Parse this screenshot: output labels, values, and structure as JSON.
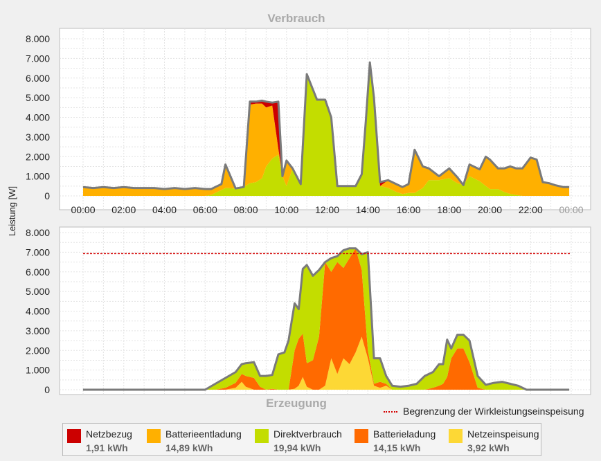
{
  "chart_data": [
    {
      "type": "area",
      "stacked": true,
      "title": "Verbrauch",
      "ylabel": "Leistung [W]",
      "ylim": [
        0,
        8000
      ],
      "y_ticks": [
        "0",
        "1.000",
        "2.000",
        "3.000",
        "4.000",
        "5.000",
        "6.000",
        "7.000",
        "8.000"
      ],
      "x_ticks": [
        "00:00",
        "02:00",
        "04:00",
        "06:00",
        "08:00",
        "10:00",
        "12:00",
        "14:00",
        "16:00",
        "18:00",
        "20:00",
        "22:00",
        "00:00"
      ],
      "grid": true,
      "x": [
        0,
        0.5,
        1,
        1.5,
        2,
        2.5,
        3,
        3.5,
        4,
        4.5,
        5,
        5.5,
        6,
        6.3,
        6.5,
        6.8,
        7,
        7.5,
        7.9,
        8.2,
        8.5,
        8.8,
        9,
        9.3,
        9.6,
        9.8,
        10,
        10.3,
        10.7,
        11,
        11.5,
        11.9,
        12.2,
        12.5,
        13,
        13.4,
        13.7,
        13.9,
        14.1,
        14.3,
        14.6,
        15,
        15.4,
        15.7,
        16,
        16.3,
        16.7,
        17,
        17.5,
        18,
        18.4,
        18.7,
        19,
        19.5,
        19.8,
        20,
        20.4,
        20.7,
        21,
        21.3,
        21.6,
        22,
        22.3,
        22.6,
        22.9,
        23.2,
        23.6,
        23.9
      ],
      "series": [
        {
          "name": "Direktverbrauch",
          "color": "#c3dd00",
          "values": [
            0,
            0,
            0,
            0,
            0,
            0,
            0,
            0,
            0,
            0,
            0,
            0,
            0,
            50,
            150,
            300,
            400,
            380,
            450,
            650,
            700,
            900,
            1500,
            1900,
            2100,
            1000,
            500,
            1400,
            600,
            6200,
            4900,
            4900,
            4000,
            500,
            500,
            500,
            1100,
            3800,
            6800,
            5000,
            500,
            400,
            200,
            100,
            150,
            150,
            400,
            800,
            800,
            900,
            650,
            550,
            1000,
            750,
            500,
            350,
            350,
            200,
            100,
            50,
            0,
            0,
            0,
            0,
            0,
            0,
            0,
            0
          ]
        },
        {
          "name": "Batterieentladung",
          "color": "#ffb000",
          "values": [
            450,
            400,
            450,
            400,
            450,
            400,
            400,
            400,
            350,
            400,
            350,
            400,
            350,
            300,
            300,
            300,
            1200,
            0,
            0,
            4000,
            4000,
            3800,
            3000,
            2700,
            300,
            0,
            1300,
            0,
            0,
            0,
            0,
            0,
            0,
            0,
            0,
            0,
            0,
            0,
            0,
            0,
            0,
            400,
            400,
            350,
            450,
            2200,
            1100,
            600,
            200,
            500,
            300,
            0,
            600,
            600,
            1500,
            1500,
            1050,
            1200,
            1400,
            1350,
            1400,
            1950,
            1850,
            700,
            650,
            550,
            450,
            450
          ]
        },
        {
          "name": "Netzbezug",
          "color": "#cc0000",
          "values": [
            0,
            0,
            0,
            0,
            0,
            0,
            0,
            0,
            0,
            0,
            0,
            0,
            0,
            0,
            0,
            0,
            0,
            0,
            0,
            150,
            100,
            150,
            300,
            150,
            2400,
            0,
            0,
            0,
            0,
            0,
            0,
            0,
            0,
            0,
            0,
            0,
            0,
            0,
            0,
            0,
            200,
            0,
            0,
            0,
            0,
            0,
            0,
            0,
            0,
            0,
            0,
            0,
            0,
            0,
            0,
            0,
            0,
            0,
            0,
            0,
            0,
            0,
            0,
            0,
            0,
            0,
            0,
            0
          ]
        }
      ]
    },
    {
      "type": "area",
      "stacked": true,
      "title": "Erzeugung",
      "ylabel": "Leistung [W]",
      "ylim": [
        0,
        8000
      ],
      "y_ticks": [
        "0",
        "1.000",
        "2.000",
        "3.000",
        "4.000",
        "5.000",
        "6.000",
        "7.000",
        "8.000"
      ],
      "grid": true,
      "limit_line": {
        "label": "Begrenzung der Wirkleistungseinspeisung",
        "value": 6930,
        "color": "#d40000"
      },
      "x": [
        0,
        6,
        6.5,
        7,
        7.5,
        7.8,
        8,
        8.4,
        8.7,
        9,
        9.3,
        9.6,
        9.9,
        10.1,
        10.4,
        10.6,
        10.8,
        11,
        11.3,
        11.6,
        11.9,
        12.2,
        12.5,
        12.8,
        13.1,
        13.4,
        13.7,
        14,
        14.3,
        14.6,
        14.9,
        15.2,
        15.6,
        16,
        16.4,
        16.8,
        17.2,
        17.5,
        17.7,
        17.9,
        18.1,
        18.4,
        18.7,
        19,
        19.4,
        19.8,
        20.2,
        20.6,
        21,
        21.4,
        21.8,
        22.2,
        23,
        23.9
      ],
      "series": [
        {
          "name": "Netzeinspeisung",
          "color": "#fdd835",
          "values": [
            0,
            0,
            0,
            0,
            100,
            400,
            150,
            0,
            0,
            0,
            0,
            0,
            0,
            0,
            50,
            200,
            650,
            150,
            0,
            0,
            200,
            1600,
            800,
            1600,
            1300,
            1900,
            2700,
            1600,
            200,
            100,
            200,
            0,
            0,
            0,
            0,
            0,
            0,
            0,
            0,
            0,
            0,
            0,
            0,
            0,
            0,
            0,
            0,
            0,
            0,
            0,
            0,
            0,
            0,
            0
          ]
        },
        {
          "name": "Batterieladung",
          "color": "#ff6a00",
          "values": [
            0,
            0,
            0,
            100,
            250,
            400,
            550,
            600,
            150,
            0,
            50,
            0,
            0,
            0,
            1950,
            2400,
            2200,
            1200,
            1500,
            2700,
            6300,
            4400,
            5700,
            4600,
            5400,
            5300,
            3400,
            400,
            100,
            300,
            100,
            0,
            0,
            0,
            0,
            0,
            100,
            200,
            300,
            650,
            1600,
            2100,
            2100,
            1400,
            100,
            0,
            0,
            0,
            0,
            0,
            0,
            0,
            0,
            0
          ]
        },
        {
          "name": "Direktverbrauch",
          "color": "#c3dd00",
          "values": [
            0,
            0,
            300,
            500,
            550,
            500,
            650,
            800,
            550,
            700,
            700,
            1800,
            1900,
            2500,
            2400,
            1500,
            3300,
            5000,
            4300,
            3400,
            0,
            700,
            300,
            900,
            500,
            0,
            800,
            5000,
            1300,
            1200,
            400,
            200,
            150,
            200,
            300,
            700,
            800,
            1100,
            1000,
            1900,
            500,
            700,
            700,
            1100,
            600,
            250,
            350,
            400,
            300,
            200,
            0,
            0,
            0,
            0
          ]
        }
      ]
    }
  ],
  "legend": {
    "items": [
      {
        "label": "Netzbezug",
        "value": "1,91 kWh",
        "color": "#cc0000"
      },
      {
        "label": "Batterieentladung",
        "value": "14,89 kWh",
        "color": "#ffb000"
      },
      {
        "label": "Direktverbrauch",
        "value": "19,94 kWh",
        "color": "#c3dd00"
      },
      {
        "label": "Batterieladung",
        "value": "14,15 kWh",
        "color": "#ff6a00"
      },
      {
        "label": "Netzeinspeisung",
        "value": "3,92 kWh",
        "color": "#fdd835"
      }
    ]
  },
  "limit_legend": {
    "label": "Begrenzung der Wirkleistungseinspeisung"
  }
}
